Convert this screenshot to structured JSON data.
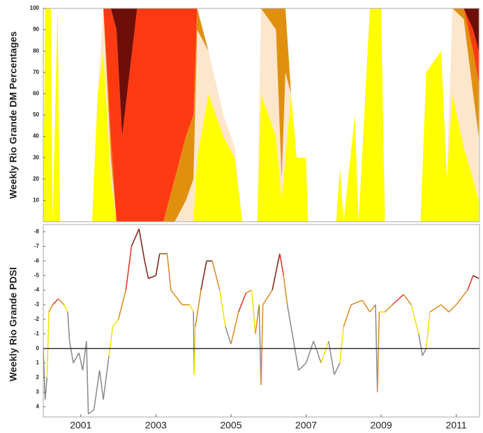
{
  "chart_data": [
    {
      "type": "area",
      "ylabel": "Weekly Rio Grande DM Percentages",
      "xlim": [
        2000,
        2011.62
      ],
      "ylim": [
        0,
        100
      ],
      "yticks": [
        10,
        20,
        30,
        40,
        50,
        60,
        70,
        80,
        90,
        100
      ],
      "x": [
        2000.0,
        2000.05,
        2000.2,
        2000.25,
        2000.38,
        2000.45,
        2001.3,
        2001.45,
        2001.6,
        2001.8,
        2001.95,
        2002.1,
        2002.3,
        2002.5,
        2003.2,
        2003.5,
        2003.8,
        2004.0,
        2004.1,
        2004.4,
        2004.8,
        2005.1,
        2005.3,
        2005.7,
        2005.8,
        2006.2,
        2006.35,
        2006.45,
        2006.6,
        2006.75,
        2007.0,
        2007.05,
        2007.8,
        2007.9,
        2008.0,
        2008.3,
        2008.4,
        2008.7,
        2009.0,
        2009.1,
        2010.05,
        2010.2,
        2010.6,
        2010.75,
        2010.9,
        2011.2,
        2011.45,
        2011.6
      ],
      "series": [
        {
          "color": "#ffff00",
          "values": [
            0,
            100,
            100,
            0,
            100,
            0,
            0,
            60,
            80,
            20,
            0,
            0,
            0,
            0,
            0,
            0,
            0,
            0,
            30,
            60,
            40,
            30,
            0,
            0,
            60,
            40,
            10,
            30,
            60,
            30,
            30,
            0,
            0,
            25,
            0,
            50,
            0,
            100,
            100,
            0,
            0,
            70,
            80,
            20,
            60,
            35,
            20,
            10
          ]
        },
        {
          "color": "#fde6cc",
          "values": [
            0,
            0,
            0,
            0,
            0,
            0,
            0,
            0,
            20,
            10,
            0,
            0,
            0,
            0,
            0,
            0,
            10,
            20,
            60,
            20,
            10,
            5,
            0,
            0,
            40,
            50,
            10,
            40,
            0,
            0,
            0,
            0,
            0,
            0,
            0,
            0,
            0,
            0,
            0,
            0,
            0,
            0,
            0,
            0,
            40,
            60,
            40,
            30
          ]
        },
        {
          "color": "#e0900e",
          "values": [
            0,
            0,
            0,
            0,
            0,
            0,
            0,
            0,
            0,
            10,
            0,
            0,
            0,
            0,
            0,
            20,
            30,
            30,
            10,
            0,
            0,
            0,
            0,
            0,
            0,
            10,
            80,
            30,
            0,
            0,
            0,
            0,
            0,
            0,
            0,
            0,
            0,
            0,
            0,
            0,
            0,
            0,
            0,
            0,
            0,
            5,
            20,
            25
          ]
        },
        {
          "color": "#ff3a12",
          "values": [
            0,
            0,
            0,
            0,
            0,
            0,
            0,
            0,
            0,
            60,
            90,
            40,
            70,
            100,
            100,
            80,
            60,
            50,
            0,
            0,
            0,
            0,
            0,
            0,
            0,
            0,
            0,
            0,
            0,
            0,
            0,
            0,
            0,
            0,
            0,
            0,
            0,
            0,
            0,
            0,
            0,
            0,
            0,
            0,
            0,
            0,
            10,
            15
          ]
        },
        {
          "color": "#6e0e08",
          "values": [
            0,
            0,
            0,
            0,
            0,
            0,
            0,
            0,
            0,
            0,
            10,
            60,
            30,
            0,
            0,
            0,
            0,
            0,
            0,
            0,
            0,
            0,
            0,
            0,
            0,
            0,
            0,
            0,
            0,
            0,
            0,
            0,
            0,
            0,
            0,
            0,
            0,
            0,
            0,
            0,
            0,
            0,
            0,
            0,
            0,
            0,
            10,
            20
          ]
        }
      ]
    },
    {
      "type": "line",
      "ylabel": "Weekly Rio Grande PDSI",
      "xlim": [
        2000,
        2011.62
      ],
      "xticks": [
        2001,
        2003,
        2005,
        2007,
        2009,
        2011
      ],
      "ylim": [
        -8.5,
        4.7
      ],
      "y_inverted": true,
      "zero_line": true,
      "yticks": [
        -8,
        -7,
        -6,
        -5,
        -4,
        -3,
        -2,
        -1,
        0,
        1,
        2,
        3,
        4
      ],
      "x": [
        2000.0,
        2000.05,
        2000.1,
        2000.15,
        2000.25,
        2000.4,
        2000.55,
        2000.65,
        2000.7,
        2000.8,
        2000.95,
        2001.05,
        2001.15,
        2001.2,
        2001.35,
        2001.5,
        2001.6,
        2001.75,
        2001.85,
        2002.0,
        2002.2,
        2002.35,
        2002.55,
        2002.7,
        2002.8,
        2003.0,
        2003.1,
        2003.3,
        2003.4,
        2003.55,
        2003.7,
        2003.9,
        2004.0,
        2004.02,
        2004.05,
        2004.2,
        2004.35,
        2004.5,
        2004.7,
        2004.85,
        2005.0,
        2005.2,
        2005.4,
        2005.55,
        2005.65,
        2005.75,
        2005.8,
        2005.85,
        2006.1,
        2006.3,
        2006.4,
        2006.5,
        2006.7,
        2006.8,
        2007.0,
        2007.2,
        2007.4,
        2007.6,
        2007.75,
        2007.9,
        2008.0,
        2008.2,
        2008.5,
        2008.7,
        2008.85,
        2008.9,
        2008.95,
        2009.1,
        2009.3,
        2009.6,
        2009.8,
        2010.0,
        2010.1,
        2010.2,
        2010.3,
        2010.6,
        2010.8,
        2011.0,
        2011.3,
        2011.45,
        2011.6
      ],
      "values": [
        0,
        3.5,
        2,
        -2.5,
        -3,
        -3.4,
        -3,
        -2.5,
        -0.5,
        1,
        0.3,
        1.5,
        -0.5,
        4.5,
        4.2,
        1.5,
        3.5,
        0.5,
        -1.5,
        -2,
        -4,
        -7,
        -8.2,
        -6,
        -4.8,
        -5,
        -6.5,
        -6.5,
        -4,
        -3.5,
        -3,
        -3,
        -2.5,
        1.8,
        -1.5,
        -4,
        -6,
        -6,
        -4,
        -1.5,
        -0.3,
        -2.5,
        -3.8,
        -4,
        -1,
        -3,
        2.5,
        -3,
        -4,
        -6.5,
        -5,
        -3,
        0,
        1.5,
        1,
        -0.5,
        1,
        -0.5,
        1.8,
        1,
        -1.5,
        -3,
        -3.3,
        -2.5,
        -3,
        3,
        -2.5,
        -2.5,
        -3,
        -3.7,
        -3,
        -1,
        0.5,
        0,
        -2.5,
        -3,
        -2.5,
        -3,
        -4,
        -5,
        -4.8
      ],
      "colors": [
        "#888888",
        "#888888",
        "#888888",
        "#f2e000",
        "#d98a1a",
        "#e0301e",
        "#d98a1a",
        "#f2e000",
        "#888888",
        "#888888",
        "#888888",
        "#888888",
        "#888888",
        "#888888",
        "#888888",
        "#888888",
        "#888888",
        "#888888",
        "#f2e000",
        "#f2e000",
        "#d98a1a",
        "#e0301e",
        "#7a1a10",
        "#7a1a10",
        "#7a1a10",
        "#7a1a10",
        "#7a1a10",
        "#e0301e",
        "#d98a1a",
        "#d98a1a",
        "#d98a1a",
        "#d98a1a",
        "#f2e000",
        "#888888",
        "#f2e000",
        "#d98a1a",
        "#7a1a10",
        "#7a1a10",
        "#d98a1a",
        "#f2e000",
        "#888888",
        "#d98a1a",
        "#e0301e",
        "#d98a1a",
        "#f2e000",
        "#d98a1a",
        "#888888",
        "#d98a1a",
        "#d98a1a",
        "#7a1a10",
        "#e0301e",
        "#d98a1a",
        "#888888",
        "#888888",
        "#888888",
        "#888888",
        "#888888",
        "#f2e000",
        "#888888",
        "#888888",
        "#f2e000",
        "#d98a1a",
        "#d98a1a",
        "#d98a1a",
        "#d98a1a",
        "#888888",
        "#d98a1a",
        "#f2e000",
        "#d98a1a",
        "#e0301e",
        "#d98a1a",
        "#f2e000",
        "#888888",
        "#888888",
        "#f2e000",
        "#d98a1a",
        "#d98a1a",
        "#d98a1a",
        "#d98a1a",
        "#e0301e",
        "#7a1a10"
      ]
    }
  ]
}
